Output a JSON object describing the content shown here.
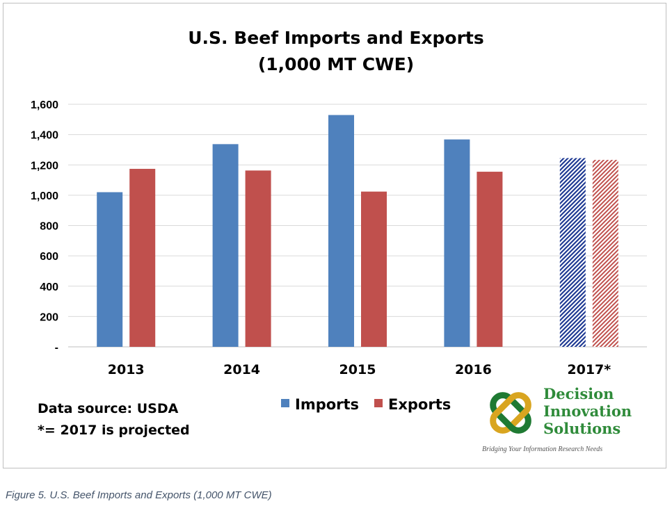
{
  "chart_data": {
    "type": "bar",
    "title": "U.S. Beef Imports and Exports",
    "subtitle": "(1,000 MT CWE)",
    "categories": [
      "2013",
      "2014",
      "2015",
      "2016",
      "2017*"
    ],
    "series": [
      {
        "name": "Imports",
        "color": "#4f81bd",
        "values": [
          1020,
          1337,
          1529,
          1368,
          1245
        ]
      },
      {
        "name": "Exports",
        "color": "#c0504d",
        "values": [
          1174,
          1163,
          1024,
          1155,
          1233
        ]
      }
    ],
    "projected_categories": [
      "2017*"
    ],
    "projected_fill": "hatched",
    "ylim": [
      0,
      1600
    ],
    "yticks": [
      0,
      200,
      400,
      600,
      800,
      1000,
      1200,
      1400,
      1600
    ],
    "ytick_labels": [
      "-",
      "200",
      "400",
      "600",
      "800",
      "1,000",
      "1,200",
      "1,400",
      "1,600"
    ],
    "grid": true,
    "legend_position": "bottom-center",
    "xlabel": "",
    "ylabel": ""
  },
  "notes": {
    "source": "Data source: USDA",
    "projection": "*= 2017 is projected"
  },
  "logo": {
    "lines": [
      "Decision",
      "Innovation",
      "Solutions"
    ],
    "tagline": "Bridging Your Information Research Needs",
    "colors": {
      "text": "#2f8b3a",
      "knot_dark": "#1f7a33",
      "knot_gold": "#d9a520"
    }
  },
  "caption": "Figure 5. U.S. Beef Imports and Exports (1,000 MT CWE)"
}
